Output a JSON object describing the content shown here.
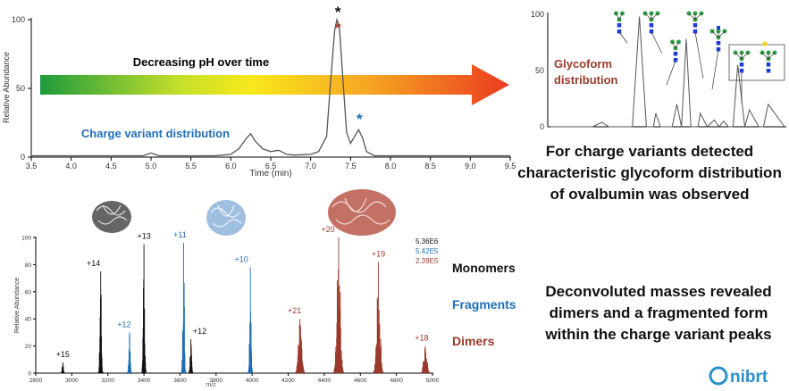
{
  "colors": {
    "black": "#111111",
    "fragments": "#1f6fb5",
    "dimers": "#9b3a2c",
    "trace": "#555555",
    "nibrt": "#2a8fc9",
    "glycan_green": "#2f9e44",
    "glycan_blue": "#1b3fd6",
    "glycan_yellow": "#f0d020"
  },
  "top_chart": {
    "arrow_label": "Decreasing pH over time",
    "charge_variant_label": "Charge variant distribution",
    "chart_data": {
      "type": "line",
      "xlabel": "Time (min)",
      "ylabel": "Relative Abundance",
      "xlim": [
        3.5,
        9.5
      ],
      "ylim": [
        0,
        100
      ],
      "xticks": [
        "3.5",
        "4.0",
        "4.5",
        "5.0",
        "5.5",
        "6.0",
        "6.5",
        "7.0",
        "7.5",
        "8.0",
        "8.5",
        "9.0",
        "9.5"
      ],
      "yticks": [
        "0",
        "50",
        "100"
      ],
      "x": [
        3.5,
        4.0,
        4.5,
        4.9,
        5.0,
        5.1,
        5.5,
        5.8,
        6.0,
        6.1,
        6.2,
        6.25,
        6.3,
        6.4,
        6.5,
        6.6,
        6.7,
        6.8,
        7.0,
        7.1,
        7.2,
        7.25,
        7.3,
        7.33,
        7.36,
        7.4,
        7.45,
        7.5,
        7.55,
        7.6,
        7.65,
        7.7,
        7.8,
        8.0,
        8.5,
        9.0,
        9.5
      ],
      "y": [
        1,
        1,
        1,
        1,
        3,
        1,
        1,
        1,
        2,
        6,
        14,
        17,
        12,
        6,
        4,
        5,
        2,
        1.5,
        2,
        4,
        15,
        55,
        92,
        100,
        95,
        60,
        18,
        10,
        15,
        20,
        14,
        4,
        1,
        1,
        1,
        1,
        1
      ],
      "markers": [
        {
          "symbol": "*",
          "x": 7.33,
          "y": 100,
          "color": "#111111"
        },
        {
          "symbol": "*",
          "x": 7.33,
          "y": 96,
          "color": "#9b3a2c"
        },
        {
          "symbol": "*",
          "x": 7.6,
          "y": 22,
          "color": "#1f6fb5"
        }
      ]
    }
  },
  "glycoform_chart": {
    "label": "Glycoform distribution",
    "chart_data": {
      "type": "line",
      "yticks": [
        "0",
        "50",
        "100"
      ],
      "ylim": [
        0,
        100
      ],
      "x": [
        0.0,
        0.18,
        0.22,
        0.25,
        0.35,
        0.38,
        0.41,
        0.44,
        0.45,
        0.47,
        0.52,
        0.54,
        0.56,
        0.58,
        0.6,
        0.63,
        0.64,
        0.67,
        0.7,
        0.72,
        0.74,
        0.76,
        0.78,
        0.8,
        0.83,
        0.85,
        0.89,
        0.91,
        0.93,
        1.0
      ],
      "y": [
        0,
        0,
        4,
        0,
        0,
        98,
        0,
        0,
        12,
        0,
        0,
        20,
        0,
        78,
        0,
        0,
        12,
        0,
        6,
        0,
        5,
        0,
        0,
        55,
        0,
        15,
        0,
        0,
        20,
        0
      ]
    }
  },
  "right_text": {
    "glycoform_statement": "For charge variants detected characteristic glycoform distribution of ovalbumin was observed",
    "deconvolution_statement": "Deconvoluted masses revealed dimers and a fragmented form within the charge variant peaks"
  },
  "bottom_chart": {
    "intensities": [
      "5.36E6",
      "5.42E5",
      "2.39E5"
    ],
    "legend": {
      "monomers": "Monomers",
      "fragments": "Fragments",
      "dimers": "Dimers"
    },
    "chart_data": {
      "type": "bar",
      "xlabel": "m/z",
      "ylabel": "Relative Abundance",
      "xlim": [
        2800,
        5000
      ],
      "ylim": [
        0,
        100
      ],
      "xticks": [
        "2800",
        "3000",
        "3200",
        "3400",
        "3600",
        "3800",
        "4000",
        "4200",
        "4400",
        "4600",
        "4800",
        "5000"
      ],
      "yticks": [
        "0",
        "20",
        "40",
        "60",
        "80",
        "100"
      ],
      "series": [
        {
          "name": "Monomers",
          "peaks": [
            {
              "label": "+15",
              "mz": 2950,
              "height": 8
            },
            {
              "label": "+14",
              "mz": 3160,
              "height": 75
            },
            {
              "label": "+13",
              "mz": 3400,
              "height": 95
            },
            {
              "label": "+12",
              "mz": 3660,
              "height": 25
            }
          ]
        },
        {
          "name": "Fragments",
          "peaks": [
            {
              "label": "+12",
              "mz": 3320,
              "height": 30
            },
            {
              "label": "+11",
              "mz": 3620,
              "height": 96
            },
            {
              "label": "+10",
              "mz": 3990,
              "height": 78
            }
          ]
        },
        {
          "name": "Dimers",
          "peaks": [
            {
              "label": "+21",
              "mz": 4265,
              "height": 40
            },
            {
              "label": "+20",
              "mz": 4480,
              "height": 100
            },
            {
              "label": "+19",
              "mz": 4700,
              "height": 82
            },
            {
              "label": "+18",
              "mz": 4960,
              "height": 20
            }
          ]
        }
      ]
    }
  },
  "logo": {
    "text": "nibrt"
  }
}
